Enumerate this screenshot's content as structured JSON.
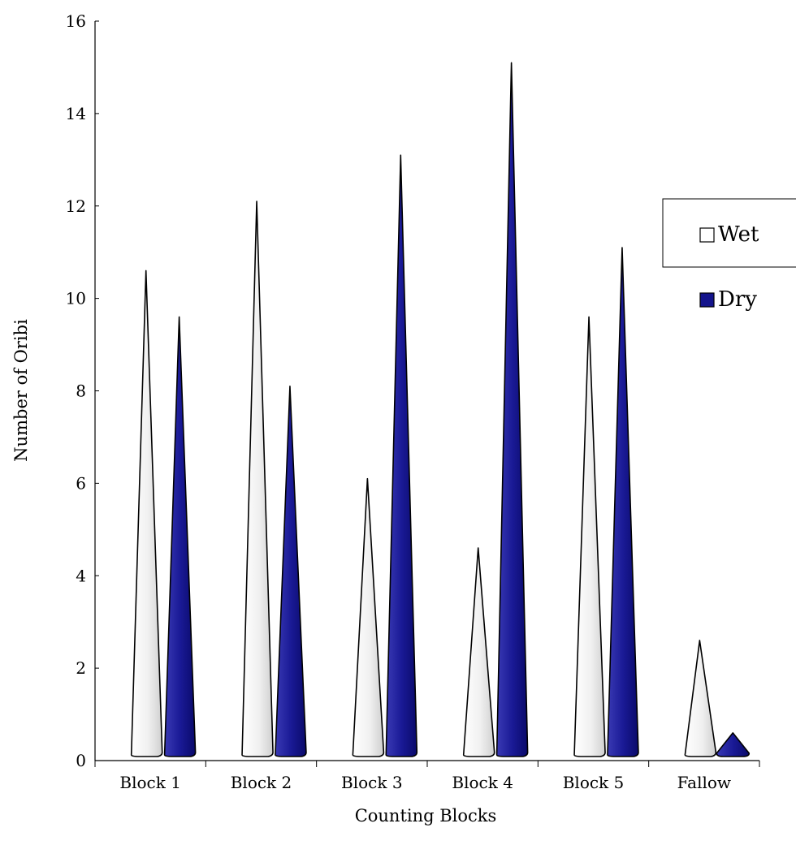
{
  "chart_data": {
    "type": "bar",
    "style": "3d-cone",
    "categories": [
      "Block 1",
      "Block 2",
      "Block 3",
      "Block 4",
      "Block 5",
      "Fallow"
    ],
    "series": [
      {
        "name": "Wet",
        "values": [
          10.6,
          12.1,
          6.1,
          4.6,
          9.6,
          2.6
        ],
        "color": "#f2f2f2"
      },
      {
        "name": "Dry",
        "values": [
          9.6,
          8.1,
          13.1,
          15.1,
          11.1,
          0.6
        ],
        "color": "#14148c"
      }
    ],
    "xlabel": "Counting Blocks",
    "ylabel": "Number of Oribi",
    "ylim": [
      0,
      16
    ],
    "yticks": [
      0,
      2,
      4,
      6,
      8,
      10,
      12,
      14,
      16
    ],
    "grid": false,
    "legend_position": "right"
  }
}
